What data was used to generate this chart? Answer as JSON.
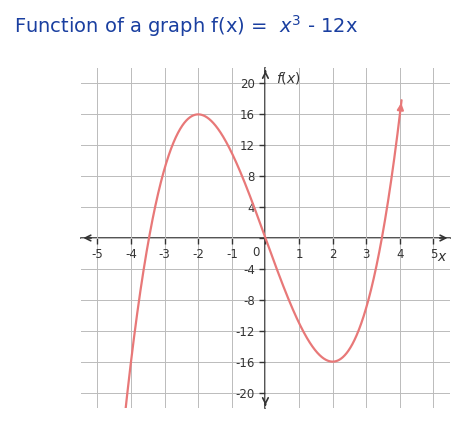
{
  "title_prefix": "Function of a graph f(x) =  ",
  "title_formula": "$x^3$ - 12x",
  "ylabel": "f(x)",
  "xlabel": "x",
  "xlim": [
    -5.5,
    5.5
  ],
  "ylim": [
    -22,
    22
  ],
  "xticks": [
    -5,
    -4,
    -3,
    -2,
    -1,
    0,
    1,
    2,
    3,
    4,
    5
  ],
  "yticks": [
    -20,
    -16,
    -12,
    -8,
    -4,
    0,
    4,
    8,
    12,
    16,
    20
  ],
  "curve_color": "#e87878",
  "title_color": "#1a3fa0",
  "title_fontsize": 14,
  "axis_color": "#333333",
  "tick_color": "#333333",
  "grid_color": "#bbbbbb",
  "background_color": "#ffffff",
  "x_plot_start": -4.35,
  "x_plot_end": 4.05
}
